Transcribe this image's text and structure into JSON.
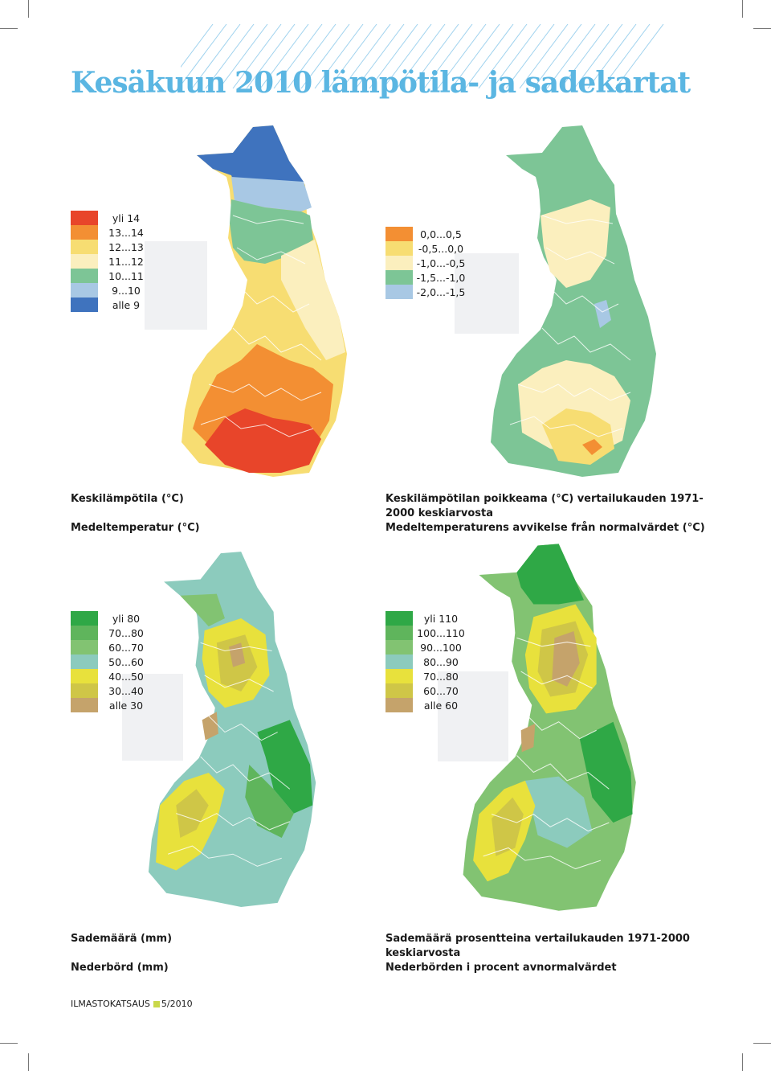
{
  "page_title": "Kesäkuun 2010 lämpötila- ja sadekartat",
  "colors": {
    "title": "#5bb6e2",
    "hatch": "#9fd2ee",
    "footer_square": "#c9d84a",
    "lake_lines": "#ffffff"
  },
  "maps": [
    {
      "id": "mean-temperature",
      "legend": [
        {
          "label": "yli 14",
          "color": "#e8452a"
        },
        {
          "label": "13...14",
          "color": "#f38f33"
        },
        {
          "label": "12...13",
          "color": "#f7dd72"
        },
        {
          "label": "11...12",
          "color": "#fbefbe"
        },
        {
          "label": "10...11",
          "color": "#7dc596"
        },
        {
          "label": "9...10",
          "color": "#a8c8e4"
        },
        {
          "label": "alle 9",
          "color": "#3f73be"
        }
      ],
      "caption_fi": "Keskilämpötila (°C)",
      "caption_sv": "Medeltemperatur (°C)"
    },
    {
      "id": "temperature-anomaly",
      "legend": [
        {
          "label": "0,0...0,5",
          "color": "#f38f33"
        },
        {
          "label": "-0,5...0,0",
          "color": "#f7dd72"
        },
        {
          "label": "-1,0...-0,5",
          "color": "#fbefbe"
        },
        {
          "label": "-1,5...-1,0",
          "color": "#7dc596"
        },
        {
          "label": "-2,0...-1,5",
          "color": "#a8c8e4"
        }
      ],
      "caption_fi_1": "Keskilämpötilan poikkeama (°C) vertailukauden 1971-",
      "caption_fi_2": "2000 keskiarvosta",
      "caption_sv": "Medeltemperaturens avvikelse från normalvärdet (°C)"
    },
    {
      "id": "precipitation",
      "legend": [
        {
          "label": "yli 80",
          "color": "#2fa846"
        },
        {
          "label": "70...80",
          "color": "#5fb55c"
        },
        {
          "label": "60...70",
          "color": "#82c372"
        },
        {
          "label": "50...60",
          "color": "#8ccbbd"
        },
        {
          "label": "40...50",
          "color": "#e8e13c"
        },
        {
          "label": "30...40",
          "color": "#cfc647"
        },
        {
          "label": "alle 30",
          "color": "#c5a36b"
        }
      ],
      "caption_fi": "Sademäärä (mm)",
      "caption_sv": "Nederbörd (mm)"
    },
    {
      "id": "precipitation-percent",
      "legend": [
        {
          "label": "yli 110",
          "color": "#2fa846"
        },
        {
          "label": "100...110",
          "color": "#5fb55c"
        },
        {
          "label": "90...100",
          "color": "#82c372"
        },
        {
          "label": "80...90",
          "color": "#8ccbbd"
        },
        {
          "label": "70...80",
          "color": "#e8e13c"
        },
        {
          "label": "60...70",
          "color": "#cfc647"
        },
        {
          "label": "alle 60",
          "color": "#c5a36b"
        }
      ],
      "caption_fi_1": "Sademäärä prosentteina vertailukauden 1971-2000",
      "caption_fi_2": "keskiarvosta",
      "caption_sv": "Nederbörden i procent avnormalvärdet"
    }
  ],
  "footer": {
    "publication": "ILMASTOKATSAUS",
    "issue": "5/2010"
  }
}
